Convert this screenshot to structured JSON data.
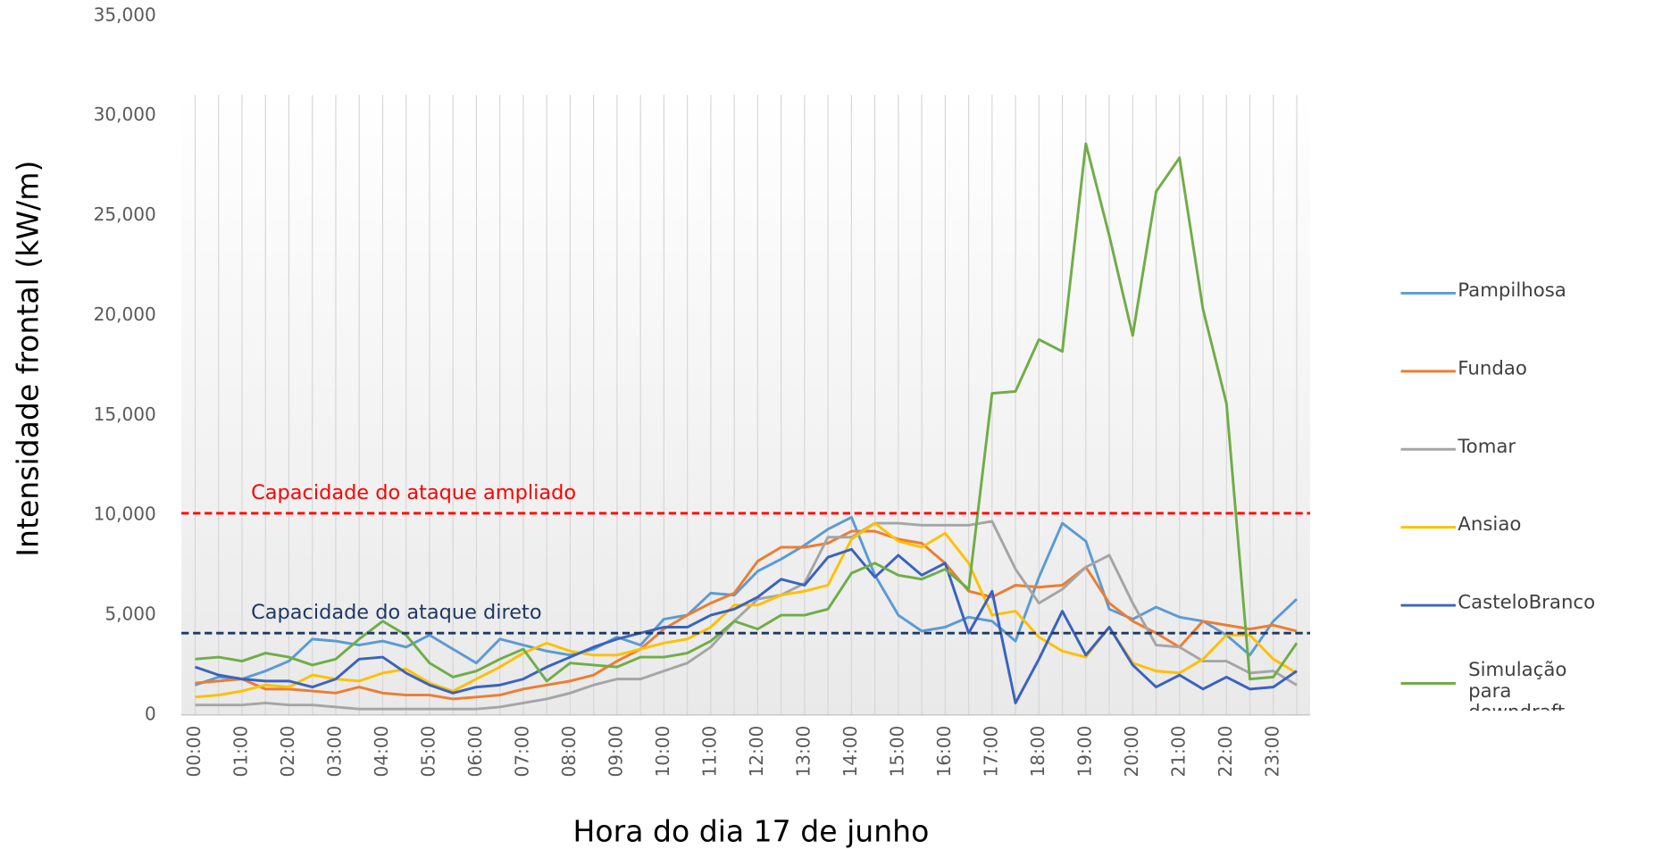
{
  "chart_data": {
    "type": "line",
    "x_label": "Hora do dia 17 de junho",
    "y_label": "Intensidade frontal (kW/m)",
    "categories": [
      "00:00",
      null,
      "01:00",
      null,
      "02:00",
      null,
      "03:00",
      null,
      "04:00",
      null,
      "05:00",
      null,
      "06:00",
      null,
      "07:00",
      null,
      "08:00",
      null,
      "09:00",
      null,
      "10:00",
      null,
      "11:00",
      null,
      "12:00",
      null,
      "13:00",
      null,
      "14:00",
      null,
      "15:00",
      null,
      "16:00",
      null,
      "17:00",
      null,
      "18:00",
      null,
      "19:00",
      null,
      "20:00",
      null,
      "21:00",
      null,
      "22:00",
      null,
      "23:00",
      null
    ],
    "series": [
      {
        "name": "Pampilhosa",
        "color": "#5b9bd5",
        "values": [
          1500,
          1900,
          1800,
          2200,
          2700,
          3800,
          3700,
          3500,
          3700,
          3400,
          4000,
          3300,
          2600,
          3800,
          3500,
          3200,
          3000,
          3300,
          3900,
          3500,
          4800,
          5000,
          6100,
          6000,
          7200,
          7800,
          8500,
          9300,
          9900,
          7000,
          5000,
          4200,
          4400,
          4900,
          4700,
          3700,
          6900,
          9600,
          8700,
          5300,
          4800,
          5400,
          4900,
          4700,
          4000,
          3000,
          4700,
          5800
        ]
      },
      {
        "name": "Fundao",
        "color": "#ed7d31",
        "values": [
          1600,
          1700,
          1800,
          1300,
          1300,
          1200,
          1100,
          1400,
          1100,
          1000,
          1000,
          800,
          900,
          1000,
          1300,
          1500,
          1700,
          2000,
          2700,
          3300,
          4300,
          5000,
          5600,
          6100,
          7700,
          8400,
          8400,
          8600,
          9200,
          9200,
          8800,
          8600,
          7600,
          6200,
          5900,
          6500,
          6400,
          6500,
          7400,
          5600,
          4700,
          4100,
          3400,
          4700,
          4500,
          4300,
          4500,
          4200
        ]
      },
      {
        "name": "Tomar",
        "color": "#a5a5a5",
        "values": [
          500,
          500,
          500,
          600,
          500,
          500,
          400,
          300,
          300,
          300,
          300,
          300,
          300,
          400,
          600,
          800,
          1100,
          1500,
          1800,
          1800,
          2200,
          2600,
          3400,
          4700,
          5800,
          6000,
          6600,
          8900,
          8900,
          9600,
          9600,
          9500,
          9500,
          9500,
          9700,
          7300,
          5600,
          6300,
          7400,
          8000,
          5600,
          3500,
          3400,
          2700,
          2700,
          2100,
          2200,
          1500
        ]
      },
      {
        "name": "Ansiao",
        "color": "#ffc000",
        "values": [
          900,
          1000,
          1200,
          1500,
          1400,
          2000,
          1800,
          1700,
          2100,
          2300,
          1600,
          1200,
          1800,
          2400,
          3100,
          3600,
          3200,
          3000,
          3000,
          3300,
          3600,
          3800,
          4400,
          5500,
          5500,
          6000,
          6200,
          6500,
          8800,
          9600,
          8700,
          8400,
          9100,
          7600,
          5000,
          5200,
          3900,
          3200,
          2900,
          4400,
          2600,
          2200,
          2100,
          2800,
          4000,
          4000,
          2800,
          2100
        ]
      },
      {
        "name": "CasteloBranco",
        "color": "#3a62c0",
        "values": [
          2400,
          2000,
          1800,
          1700,
          1700,
          1400,
          1800,
          2800,
          2900,
          2100,
          1500,
          1100,
          1400,
          1500,
          1800,
          2400,
          2900,
          3400,
          3800,
          4100,
          4400,
          4400,
          5000,
          5300,
          5900,
          6800,
          6500,
          7900,
          8300,
          6900,
          8000,
          7000,
          7600,
          4100,
          6200,
          600,
          2800,
          5200,
          3000,
          4400,
          2500,
          1400,
          2000,
          1300,
          1900,
          1300,
          1400,
          2200
        ]
      },
      {
        "name": "Simulação para downdraft",
        "color": "#70ad47",
        "values": [
          2800,
          2900,
          2700,
          3100,
          2900,
          2500,
          2800,
          3800,
          4700,
          4000,
          2600,
          1900,
          2200,
          2800,
          3300,
          1700,
          2600,
          2500,
          2400,
          2900,
          2900,
          3100,
          3700,
          4700,
          4300,
          5000,
          5000,
          5300,
          7100,
          7600,
          7000,
          6800,
          7300,
          6300,
          16100,
          16200,
          18800,
          18200,
          28600,
          24000,
          19000,
          26200,
          27900,
          20300,
          15600,
          1800,
          1900,
          3600
        ]
      }
    ],
    "reference_lines": [
      {
        "label": "Capacidade do ataque ampliado",
        "value": 10100,
        "color": "#ff0000"
      },
      {
        "label": "Capacidade do ataque direto",
        "value": 4100,
        "color": "#1f3864"
      }
    ],
    "ylim": [
      0,
      35000
    ],
    "yticks": [
      0,
      {
        "value": 5000,
        "label": "5,000"
      },
      {
        "value": 10000,
        "label": "10,000"
      },
      {
        "value": 15000,
        "label": "15,000"
      },
      {
        "value": 20000,
        "label": "20,000"
      },
      {
        "value": 25000,
        "label": "25,000"
      },
      {
        "value": 30000,
        "label": "30,000"
      },
      {
        "value": 35000,
        "label": "35,000"
      }
    ],
    "grid": true,
    "legend": "right"
  }
}
